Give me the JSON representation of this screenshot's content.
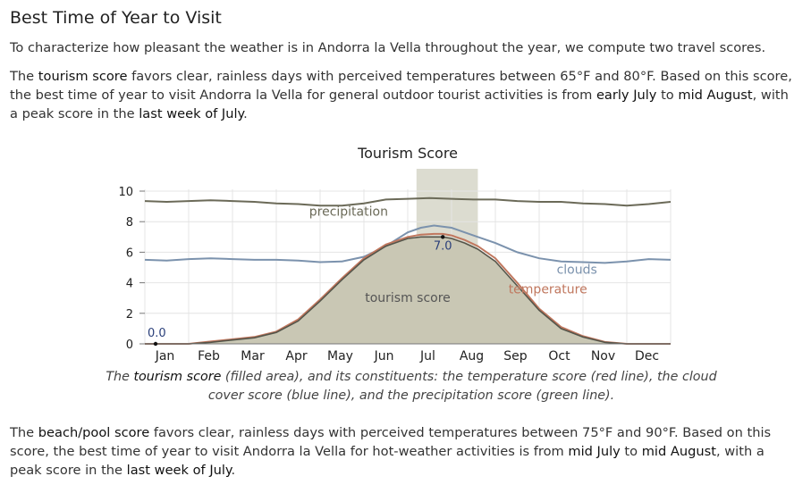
{
  "heading": "Best Time of Year to Visit",
  "intro": "To characterize how pleasant the weather is in Andorra la Vella throughout the year, we compute two travel scores.",
  "tourism": {
    "p_a": "The ",
    "term": "tourism score",
    "p_b": " favors clear, rainless days with perceived temperatures between 65°F and 80°F. Based on this score, the best time of year to visit Andorra la Vella for general outdoor tourist activities is from ",
    "start": "early July",
    "p_c": " to ",
    "end": "mid August",
    "p_d": ", with a peak score in the ",
    "peak": "last week of July",
    "p_e": "."
  },
  "caption": {
    "c_a": "The ",
    "term": "tourism score",
    "c_b": " (filled area), and its constituents: the temperature score (red line), the cloud cover score (blue line), and the precipitation score (green line)."
  },
  "beach": {
    "p_a": "The ",
    "term": "beach/pool score",
    "p_b": " favors clear, rainless days with perceived temperatures between 75°F and 90°F. Based on this score, the best time of year to visit Andorra la Vella for hot-weather activities is from ",
    "start": "mid July",
    "p_c": " to ",
    "end": "mid August",
    "p_d": ", with a peak score in the ",
    "peak": "last week of July",
    "p_e": "."
  },
  "chart_data": {
    "type": "area",
    "title": "Tourism Score",
    "x_ticks": [
      "Jan",
      "Feb",
      "Mar",
      "Apr",
      "May",
      "Jun",
      "Jul",
      "Aug",
      "Sep",
      "Oct",
      "Nov",
      "Dec"
    ],
    "y_ticks": [
      "0",
      "2",
      "4",
      "6",
      "8",
      "10"
    ],
    "ylim": [
      0,
      10
    ],
    "x_range_months": [
      0,
      12
    ],
    "highlight_band_months": [
      6.2,
      7.6
    ],
    "annotations": {
      "min_label": "0.0",
      "min_month": 0,
      "max_label": "7.0",
      "max_month": 6.8,
      "max_value": 7.0
    },
    "series": [
      {
        "name": "tourism score",
        "role": "fill",
        "color": "#c9c7b4",
        "x": [
          0,
          1,
          1.5,
          2,
          2.5,
          3,
          3.5,
          4,
          4.5,
          5,
          5.5,
          6,
          6.3,
          6.6,
          6.8,
          7.0,
          7.3,
          7.6,
          8,
          8.5,
          9,
          9.5,
          10,
          10.5,
          11,
          11.5,
          12
        ],
        "values": [
          0,
          0,
          0.1,
          0.25,
          0.4,
          0.75,
          1.5,
          2.8,
          4.2,
          5.5,
          6.4,
          6.9,
          7.0,
          7.0,
          7.0,
          6.9,
          6.6,
          6.2,
          5.4,
          3.8,
          2.2,
          1.0,
          0.45,
          0.1,
          0,
          0,
          0
        ]
      },
      {
        "name": "temperature",
        "role": "line",
        "color": "#c0775e",
        "x": [
          0,
          1,
          1.5,
          2,
          2.5,
          3,
          3.5,
          4,
          4.5,
          5,
          5.5,
          6,
          6.3,
          6.6,
          6.8,
          7.0,
          7.3,
          7.6,
          8,
          8.5,
          9,
          9.5,
          10,
          10.5,
          11,
          11.5,
          12
        ],
        "values": [
          0,
          0,
          0.15,
          0.3,
          0.45,
          0.8,
          1.6,
          2.9,
          4.3,
          5.6,
          6.5,
          7.0,
          7.15,
          7.2,
          7.2,
          7.1,
          6.8,
          6.4,
          5.6,
          4.0,
          2.3,
          1.1,
          0.5,
          0.12,
          0,
          0,
          0
        ]
      },
      {
        "name": "clouds",
        "role": "line",
        "color": "#7b92ad",
        "x": [
          0,
          0.5,
          1,
          1.5,
          2,
          2.5,
          3,
          3.5,
          4,
          4.5,
          5,
          5.5,
          6,
          6.3,
          6.6,
          7.0,
          7.3,
          7.6,
          8,
          8.5,
          9,
          9.5,
          10,
          10.5,
          11,
          11.5,
          12
        ],
        "values": [
          5.5,
          5.45,
          5.55,
          5.6,
          5.55,
          5.5,
          5.5,
          5.45,
          5.35,
          5.4,
          5.7,
          6.4,
          7.3,
          7.6,
          7.75,
          7.6,
          7.3,
          7.0,
          6.6,
          6.0,
          5.6,
          5.4,
          5.35,
          5.3,
          5.4,
          5.55,
          5.5
        ]
      },
      {
        "name": "precipitation",
        "role": "line",
        "color": "#6b6a58",
        "x": [
          0,
          0.5,
          1,
          1.5,
          2,
          2.5,
          3,
          3.5,
          4,
          4.5,
          5,
          5.5,
          6,
          6.5,
          7.0,
          7.5,
          8,
          8.5,
          9,
          9.5,
          10,
          10.5,
          11,
          11.5,
          12
        ],
        "values": [
          9.35,
          9.3,
          9.35,
          9.4,
          9.35,
          9.3,
          9.2,
          9.15,
          9.05,
          9.05,
          9.2,
          9.45,
          9.5,
          9.55,
          9.5,
          9.45,
          9.45,
          9.35,
          9.3,
          9.3,
          9.2,
          9.15,
          9.05,
          9.15,
          9.3
        ]
      }
    ],
    "line_labels": {
      "precipitation": "precipitation",
      "clouds": "clouds",
      "temperature": "temperature",
      "tourism": "tourism score"
    }
  }
}
